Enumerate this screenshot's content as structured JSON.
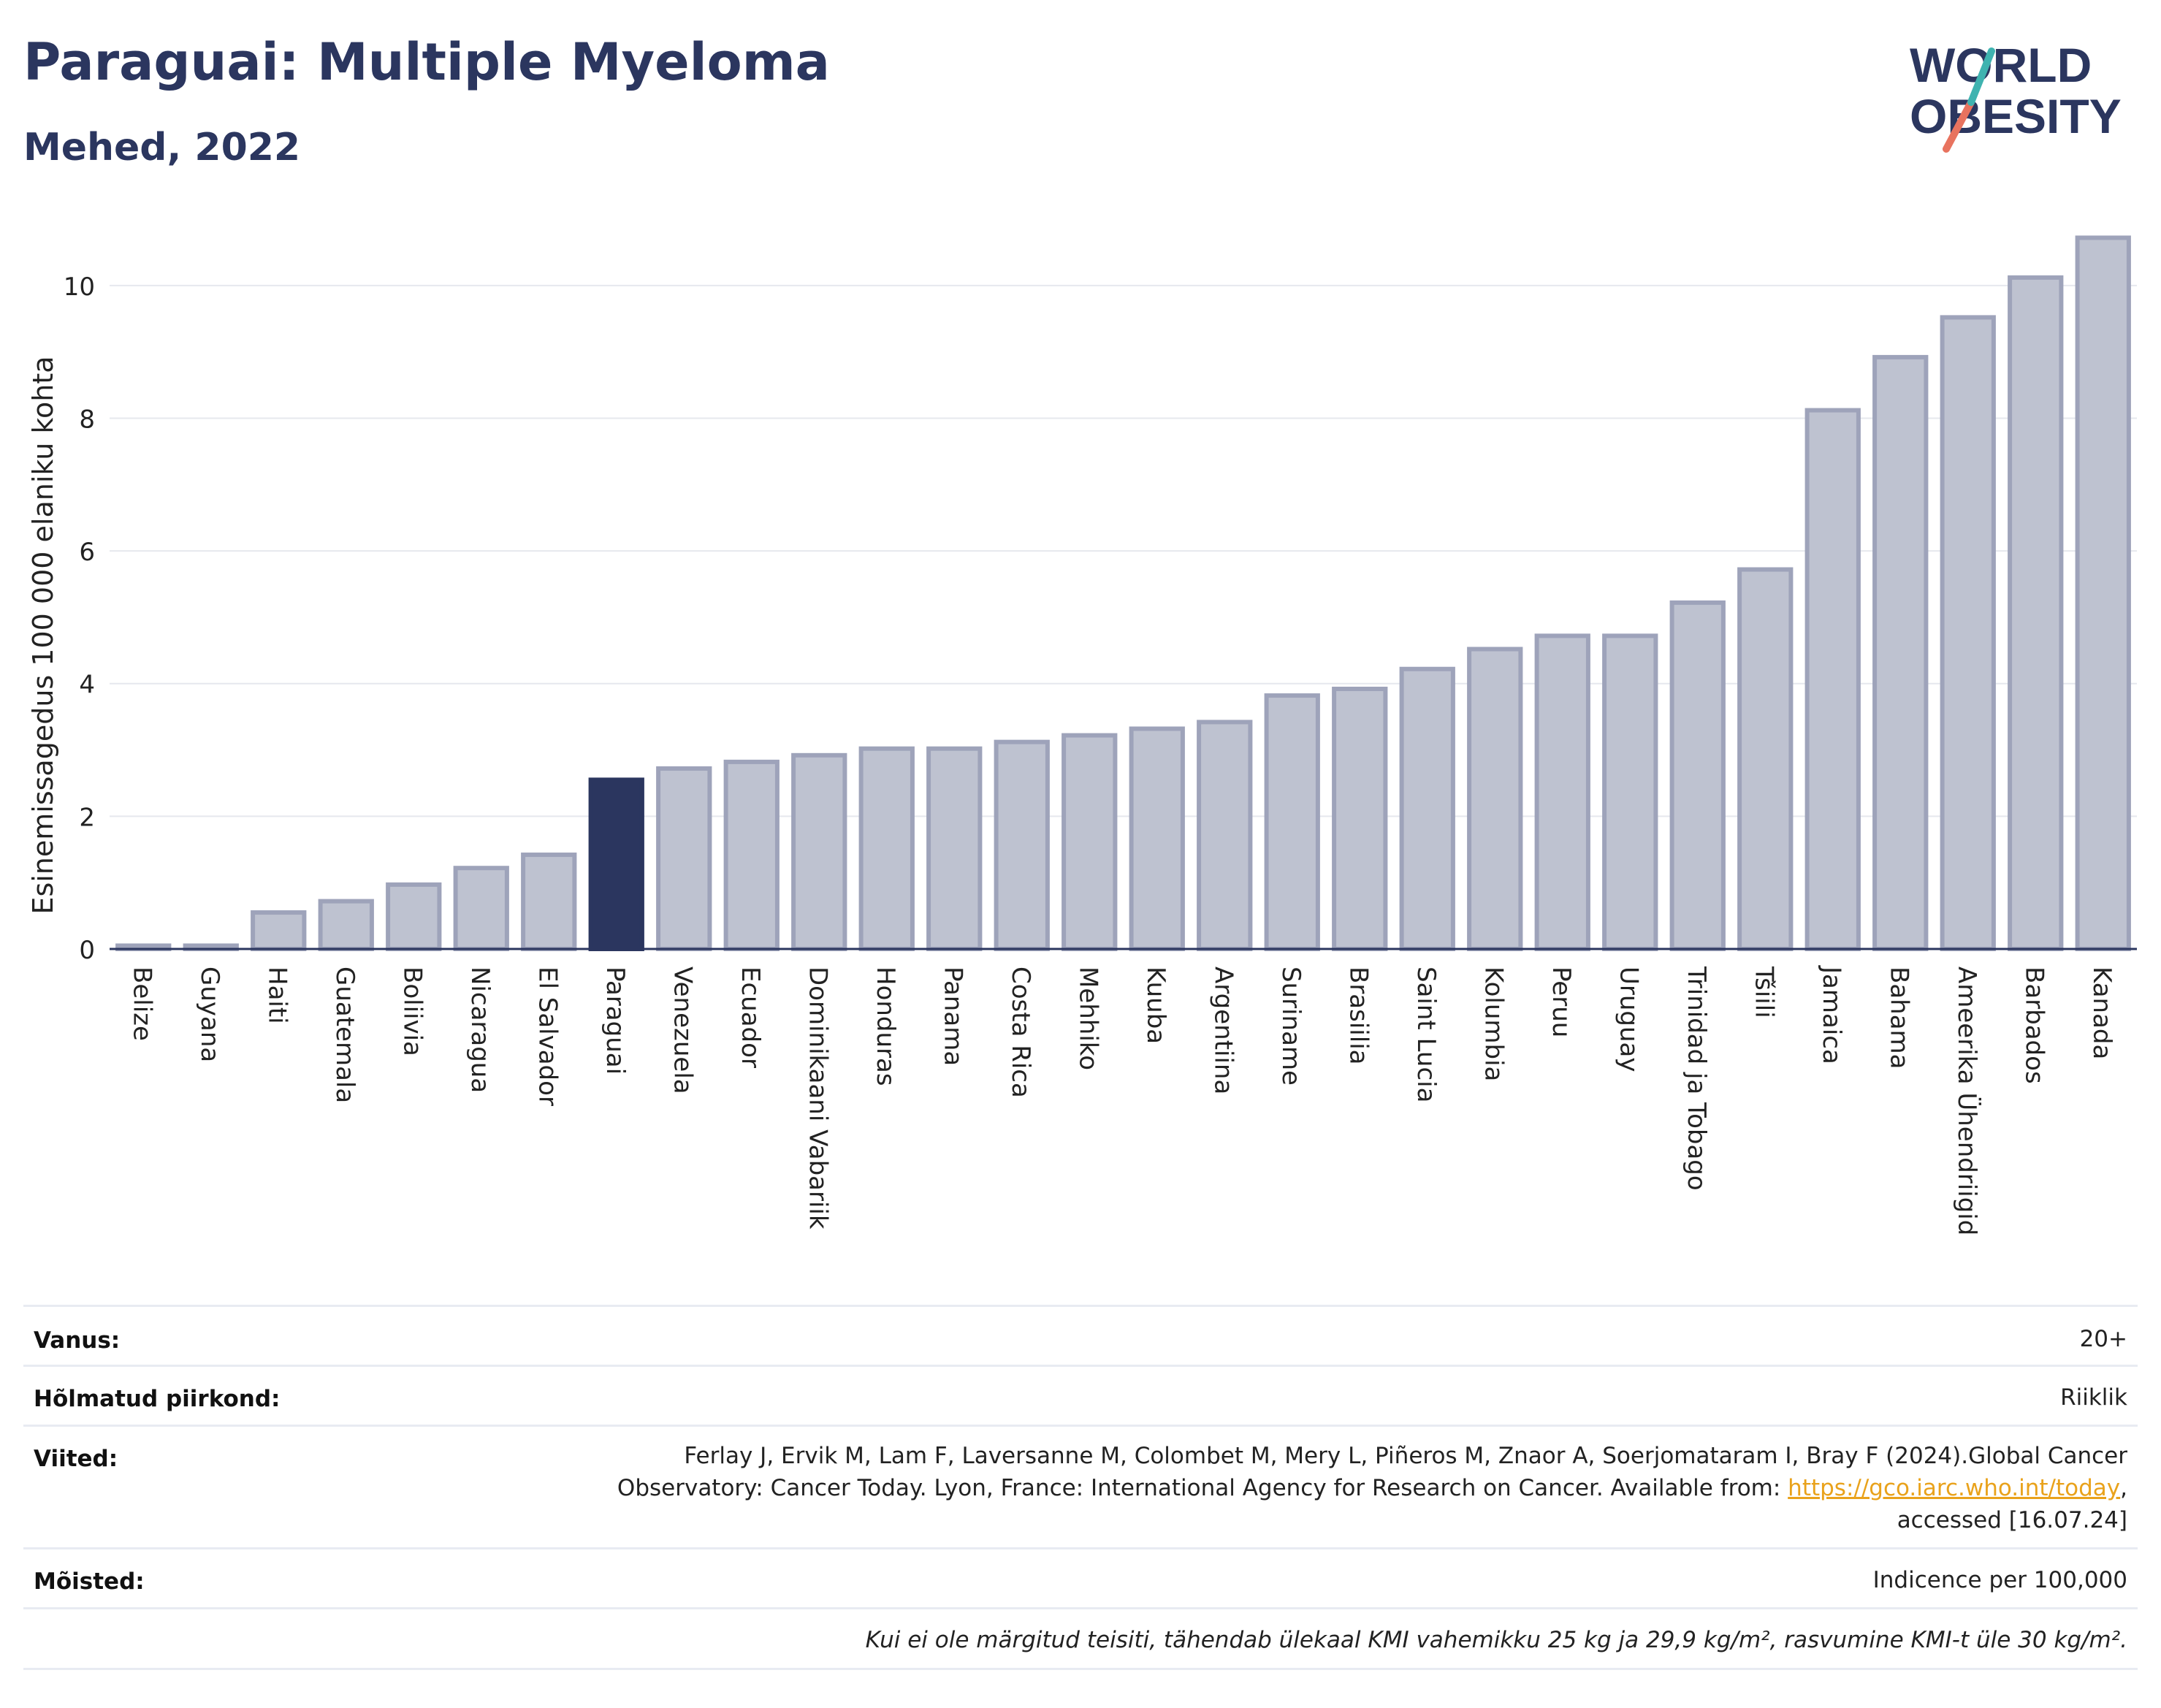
{
  "header": {
    "title": "Paraguai: Multiple Myeloma",
    "subtitle": "Mehed, 2022",
    "logo_line1": "WORLD",
    "logo_line2": "OBESITY"
  },
  "colors": {
    "title": "#2b365f",
    "bar_default": "#bec2d0",
    "bar_default_stroke": "#9ea3ba",
    "bar_highlight": "#2b365f",
    "logo_teal": "#3fb3b0",
    "logo_coral": "#e8735f",
    "link": "#e9a21b"
  },
  "chart_data": {
    "type": "bar",
    "ylabel": "Esinemissagedus 100 000 elaniku kohta",
    "ylim": [
      0,
      11
    ],
    "yticks": [
      0,
      2,
      4,
      6,
      8,
      10
    ],
    "grid": true,
    "highlight": "Paraguai",
    "categories": [
      "Belize",
      "Guyana",
      "Haiti",
      "Guatemala",
      "Boliivia",
      "Nicaragua",
      "El Salvador",
      "Paraguai",
      "Venezuela",
      "Ecuador",
      "Dominikaani Vabariik",
      "Honduras",
      "Panama",
      "Costa Rica",
      "Mehhiko",
      "Kuuba",
      "Argentiina",
      "Suriname",
      "Brasiilia",
      "Saint Lucia",
      "Kolumbia",
      "Peruu",
      "Uruguay",
      "Trinidad ja Tobago",
      "Tšiili",
      "Jamaica",
      "Bahama",
      "Ameerika Ühendriigid",
      "Barbados",
      "Kanada"
    ],
    "values": [
      0.05,
      0.05,
      0.55,
      0.72,
      0.97,
      1.22,
      1.42,
      2.55,
      2.72,
      2.82,
      2.92,
      3.02,
      3.02,
      3.12,
      3.22,
      3.32,
      3.42,
      3.82,
      3.92,
      4.22,
      4.52,
      4.72,
      4.72,
      5.22,
      5.72,
      8.12,
      8.92,
      9.52,
      10.12,
      10.72
    ]
  },
  "meta": {
    "age_label": "Vanus:",
    "age_value": "20+",
    "region_label": "Hõlmatud piirkond:",
    "region_value": "Riiklik",
    "refs_label": "Viited:",
    "refs_line1": "Ferlay J, Ervik M, Lam F, Laversanne M, Colombet M, Mery L, Piñeros M, Znaor A, Soerjomataram I, Bray F (2024).Global Cancer",
    "refs_line2": "Observatory: Cancer Today. Lyon, France: International Agency for Research on Cancer. Available from: ",
    "refs_link": "https://gco.iarc.who.int/today",
    "refs_line2_end": ",",
    "refs_line3": "accessed [16.07.24]",
    "defs_label": "Mõisted:",
    "defs_value": "Indicence per 100,000",
    "note": "Kui ei ole märgitud teisiti, tähendab ülekaal KMI vahemikku 25 kg ja 29,9 kg/m², rasvumine KMI-t üle 30 kg/m²."
  }
}
